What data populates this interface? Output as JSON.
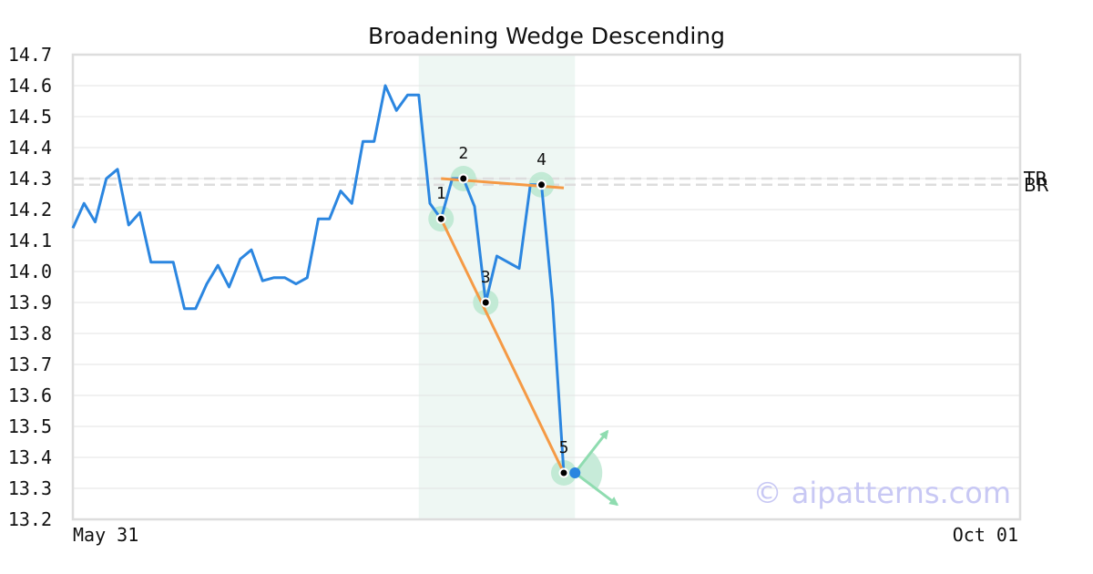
{
  "chart_data": {
    "type": "line",
    "title": "Broadening Wedge Descending",
    "x_tick_labels": [
      "May 31",
      "Oct 01"
    ],
    "ylim": [
      13.2,
      14.7
    ],
    "y_ticks": [
      "14.7",
      "14.6",
      "14.5",
      "14.4",
      "14.3",
      "14.2",
      "14.1",
      "14.0",
      "13.9",
      "13.8",
      "13.7",
      "13.6",
      "13.5",
      "13.4",
      "13.3",
      "13.2"
    ],
    "grid": "horizontal",
    "series": [
      {
        "color": "#2b86e0",
        "values": [
          14.14,
          14.22,
          14.16,
          14.3,
          14.33,
          14.15,
          14.19,
          14.03,
          14.03,
          14.03,
          13.88,
          13.88,
          13.96,
          14.02,
          13.95,
          14.04,
          14.07,
          13.97,
          13.98,
          13.98,
          13.96,
          13.98,
          14.17,
          14.17,
          14.26,
          14.22,
          14.42,
          14.42,
          14.6,
          14.52,
          14.57,
          14.57,
          14.22,
          14.17,
          14.3,
          14.3,
          14.21,
          13.9,
          14.05,
          14.03,
          14.01,
          14.28,
          14.28,
          13.9,
          13.35
        ]
      }
    ],
    "highlight_region_index": [
      31,
      45
    ],
    "pattern_points": [
      {
        "label": "1",
        "index": 33,
        "value": 14.17
      },
      {
        "label": "2",
        "index": 35,
        "value": 14.3
      },
      {
        "label": "3",
        "index": 37,
        "value": 13.9
      },
      {
        "label": "4",
        "index": 42,
        "value": 14.28
      },
      {
        "label": "5",
        "index": 44,
        "value": 13.35
      }
    ],
    "upper_trendline": {
      "start": {
        "index": 33,
        "value": 14.3
      },
      "end": {
        "index": 44,
        "value": 14.27
      }
    },
    "lower_trendline": {
      "start": {
        "index": 33,
        "value": 14.17
      },
      "end": {
        "index": 44,
        "value": 13.35
      }
    },
    "levels": [
      {
        "label": "TR",
        "value": 14.3
      },
      {
        "label": "BR",
        "value": 14.28
      }
    ],
    "breakout_marker": {
      "index": 45,
      "value": 13.35
    },
    "colors": {
      "price_line": "#2b86e0",
      "trendline": "#f59a45",
      "highlight_region": "#eef7f3",
      "point_halo": "#bde8d2",
      "arrow": "#8fdcb0",
      "level_line": "#dddddd",
      "breakout_dot": "#2b86e0"
    },
    "watermark": "© aipatterns.com"
  }
}
